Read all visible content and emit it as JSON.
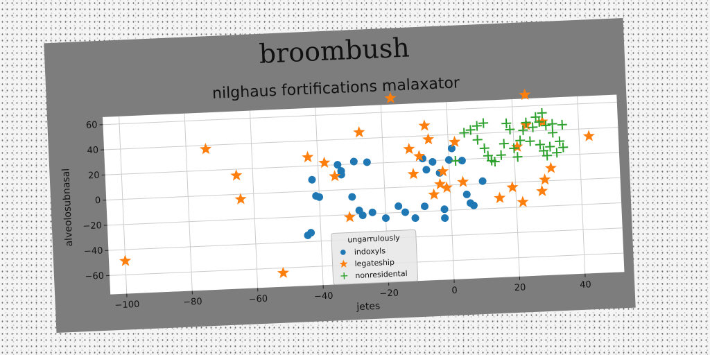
{
  "figure": {
    "suptitle": "broombush",
    "background_color": "#7d7d7d",
    "axes_color": "#ffffff",
    "grid_color": "#cccccc"
  },
  "chart_data": {
    "type": "scatter",
    "title": "nilghaus fortifications malaxator",
    "xlabel": "jetes",
    "ylabel": "alveolosubnasal",
    "xlim": [
      -105,
      52
    ],
    "ylim": [
      -75,
      66
    ],
    "xticks": [
      -100,
      -80,
      -60,
      -40,
      -20,
      0,
      20,
      40
    ],
    "yticks": [
      -60,
      -40,
      -20,
      0,
      20,
      40,
      60
    ],
    "grid": true,
    "legend": {
      "title": "ungarrulously",
      "placement": "lower-center"
    },
    "series": [
      {
        "name": "indoxyls",
        "marker": "circle",
        "color": "#1f77b4",
        "points": [
          [
            -42,
            9
          ],
          [
            -41,
            -4
          ],
          [
            -40,
            -5
          ],
          [
            -44,
            -35
          ],
          [
            -43,
            -33
          ],
          [
            -34,
            20
          ],
          [
            -33,
            15
          ],
          [
            -33,
            12
          ],
          [
            -29,
            22
          ],
          [
            -25,
            21
          ],
          [
            -30,
            -6
          ],
          [
            -28,
            -17
          ],
          [
            -27,
            -21
          ],
          [
            -24,
            -19
          ],
          [
            -20,
            -24
          ],
          [
            -16,
            -15
          ],
          [
            -14,
            -20
          ],
          [
            -11,
            -25
          ],
          [
            -8,
            -16
          ],
          [
            -8,
            22
          ],
          [
            -7,
            13
          ],
          [
            -5,
            19
          ],
          [
            -3,
            10
          ],
          [
            0,
            20
          ],
          [
            1,
            29
          ],
          [
            -2,
            -19
          ],
          [
            -2,
            -26
          ],
          [
            4,
            19
          ],
          [
            5,
            -8
          ],
          [
            6,
            -15
          ],
          [
            7,
            -17
          ],
          [
            10,
            2
          ]
        ]
      },
      {
        "name": "legateship",
        "marker": "star",
        "color": "#ff7f0e",
        "points": [
          [
            -100,
            -49
          ],
          [
            -74,
            37
          ],
          [
            -65,
            15
          ],
          [
            -64,
            -4
          ],
          [
            -52,
            -64
          ],
          [
            -43,
            27
          ],
          [
            -38,
            22
          ],
          [
            -35,
            11
          ],
          [
            -31,
            -22
          ],
          [
            -27,
            45
          ],
          [
            -17,
            71
          ],
          [
            -12,
            30
          ],
          [
            -11,
            10
          ],
          [
            -9,
            24
          ],
          [
            -7,
            48
          ],
          [
            -6,
            37
          ],
          [
            -5,
            -7
          ],
          [
            -3,
            1
          ],
          [
            -2,
            11
          ],
          [
            -1,
            -2
          ],
          [
            2,
            34
          ],
          [
            4,
            2
          ],
          [
            15,
            -12
          ],
          [
            19,
            -4
          ],
          [
            21,
            28
          ],
          [
            22,
            -16
          ],
          [
            24,
            69
          ],
          [
            24,
            45
          ],
          [
            28,
            -8
          ],
          [
            29,
            1
          ],
          [
            29,
            47
          ],
          [
            31,
            10
          ],
          [
            43,
            34
          ]
        ]
      },
      {
        "name": "nonresidental",
        "marker": "plus",
        "color": "#2ca02c",
        "points": [
          [
            2,
            19
          ],
          [
            5,
            41
          ],
          [
            7,
            43
          ],
          [
            9,
            46
          ],
          [
            9,
            35
          ],
          [
            11,
            28
          ],
          [
            11,
            48
          ],
          [
            12,
            22
          ],
          [
            13,
            18
          ],
          [
            14,
            17
          ],
          [
            16,
            22
          ],
          [
            17,
            31
          ],
          [
            18,
            47
          ],
          [
            19,
            42
          ],
          [
            20,
            27
          ],
          [
            21,
            20
          ],
          [
            22,
            33
          ],
          [
            23,
            41
          ],
          [
            24,
            47
          ],
          [
            25,
            32
          ],
          [
            26,
            43
          ],
          [
            27,
            51
          ],
          [
            28,
            47
          ],
          [
            28,
            29
          ],
          [
            29,
            24
          ],
          [
            29,
            54
          ],
          [
            30,
            44
          ],
          [
            30,
            20
          ],
          [
            31,
            27
          ],
          [
            32,
            38
          ],
          [
            32,
            45
          ],
          [
            33,
            22
          ],
          [
            34,
            31
          ],
          [
            35,
            26
          ],
          [
            35,
            44
          ]
        ]
      }
    ]
  }
}
